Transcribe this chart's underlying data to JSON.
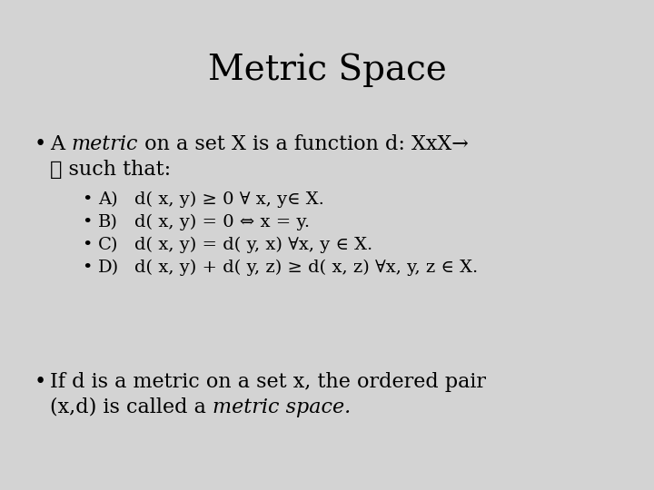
{
  "background_color": "#d3d3d3",
  "title": "Metric Space",
  "title_fontsize": 28,
  "font_family": "DejaVu Serif",
  "bullet_fontsize": 16,
  "sub_bullet_fontsize": 14,
  "text_color": "#000000",
  "sub_bullets": [
    [
      "A)",
      "d( x, y) ≥ 0 ∀ x, y∈ X."
    ],
    [
      "B)",
      "d( x, y) = 0 ⇔ x = y."
    ],
    [
      "C)",
      "d( x, y) = d( y, x) ∀x, y ∈ X."
    ],
    [
      "D)",
      "d( x, y) + d( y, z) ≥ d( x, z) ∀x, y, z ∈ X."
    ]
  ],
  "bullet2_line1": "If d is a metric on a set x, the ordered pair",
  "bullet2_line2_prefix": "(x,d) is called a ",
  "bullet2_line2_italic": "metric space."
}
